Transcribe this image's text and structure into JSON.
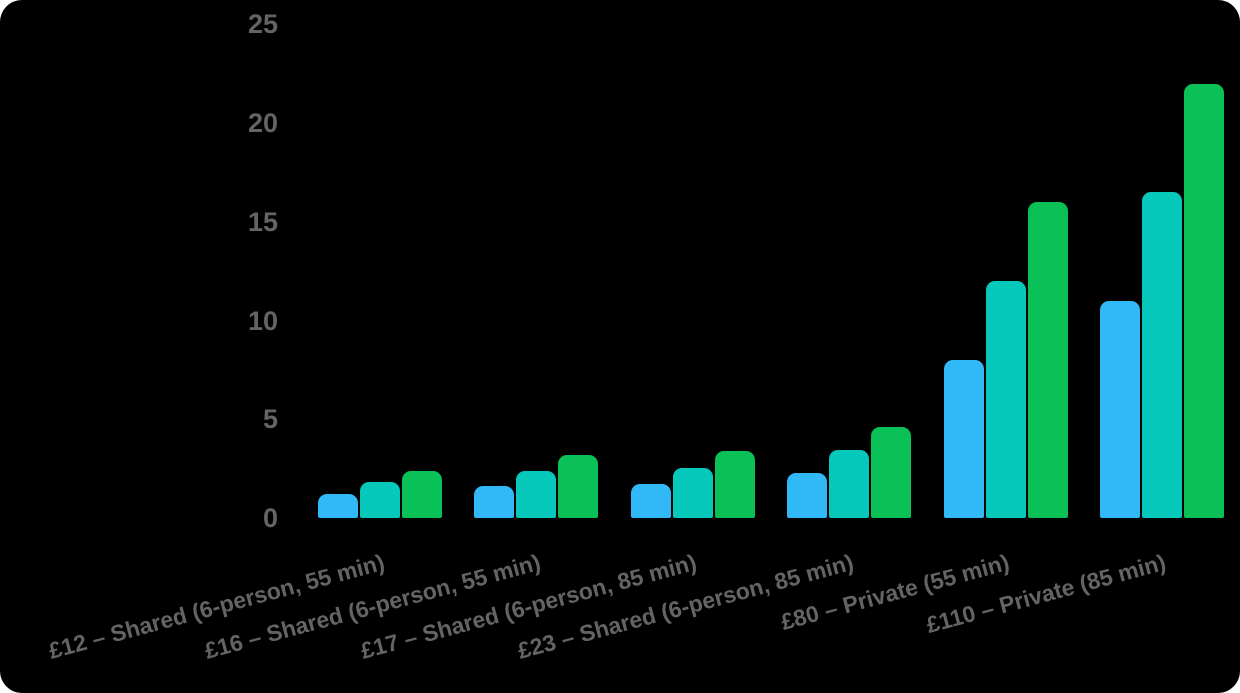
{
  "chart_data": {
    "type": "bar",
    "title": "",
    "xlabel": "",
    "ylabel": "",
    "categories": [
      "£12 – Shared (6-person, 55 min)",
      "£16 – Shared (6-person, 55 min)",
      "£17 – Shared (6-person, 85 min)",
      "£23 – Shared (6-person, 85 min)",
      "£80 – Private (55 min)",
      "£110 – Private (85 min)"
    ],
    "series": [
      {
        "name": "blue",
        "color": "#31B8F6",
        "values": [
          1.2,
          1.6,
          1.7,
          2.3,
          8,
          11
        ]
      },
      {
        "name": "teal",
        "color": "#06C9BB",
        "values": [
          1.8,
          2.4,
          2.55,
          3.45,
          12,
          16.5
        ]
      },
      {
        "name": "green",
        "color": "#0AC158",
        "values": [
          2.4,
          3.2,
          3.4,
          4.6,
          16,
          22
        ]
      }
    ],
    "yticks": [
      0,
      5,
      10,
      15,
      20,
      25
    ],
    "ylim": [
      0,
      25
    ],
    "grid": false,
    "legend": "none",
    "x_label_rotation_deg": -15
  },
  "theme": {
    "page_background": "#FFFFFF",
    "chart_background": "#000000",
    "text_color": "#646464"
  }
}
